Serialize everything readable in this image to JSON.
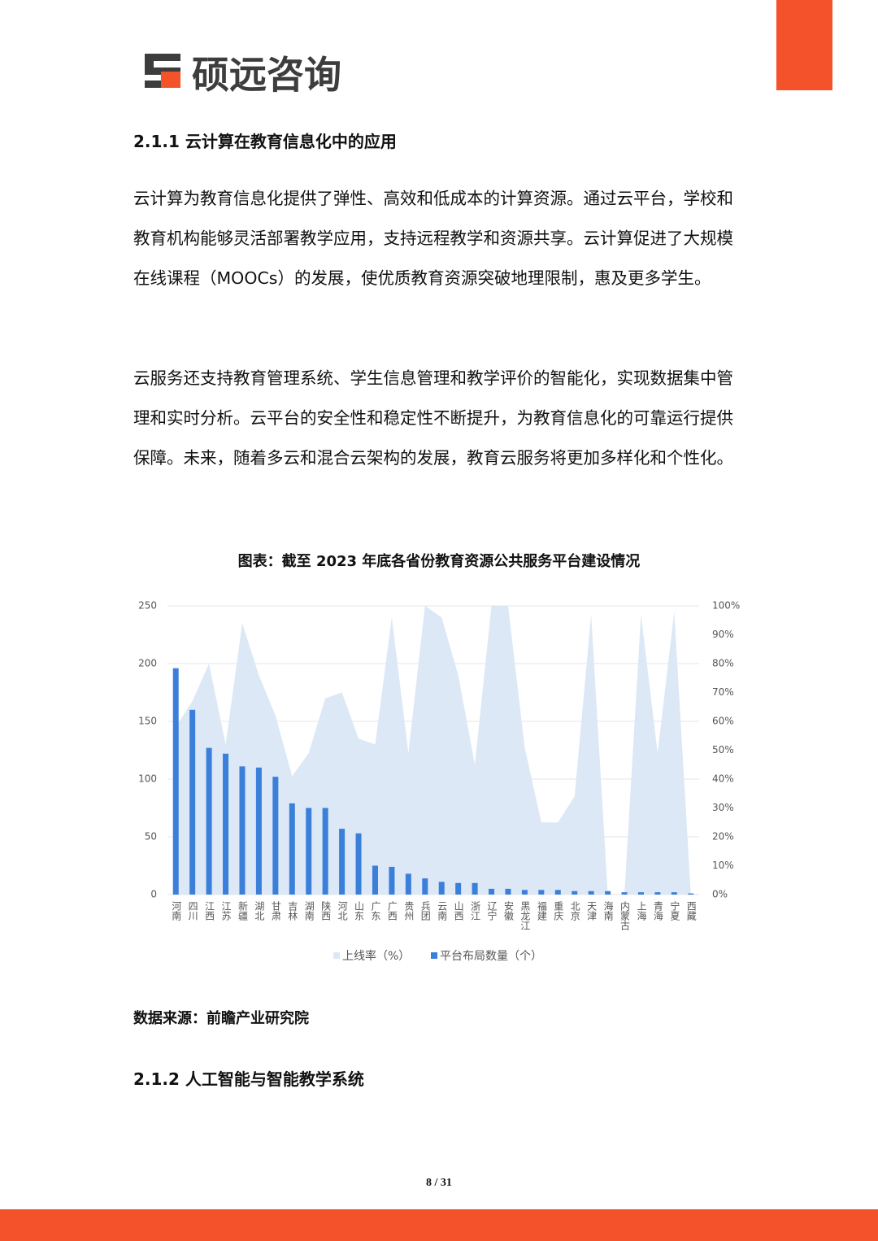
{
  "header": {
    "logo": "硕远咨询"
  },
  "sections": [
    {
      "heading": "2.1.1 云计算在教育信息化中的应用",
      "paragraphs": [
        "云计算为教育信息化提供了弹性、高效和低成本的计算资源。通过云平台，学校和教育机构能够灵活部署教学应用，支持远程教学和资源共享。云计算促进了大规模在线课程（MOOCs）的发展，使优质教育资源突破地理限制，惠及更多学生。",
        "云服务还支持教育管理系统、学生信息管理和教学评价的智能化，实现数据集中管理和实时分析。云平台的安全性和稳定性不断提升，为教育信息化的可靠运行提供保障。未来，随着多云和混合云架构的发展，教育云服务将更加多样化和个性化。"
      ]
    },
    {
      "heading": "2.1.2 人工智能与智能教学系统",
      "paragraphs": []
    }
  ],
  "chart_data": {
    "type": "bar",
    "title": "图表：截至 2023 年底各省份教育资源公共服务平台建设情况",
    "categories": [
      "河南",
      "四川",
      "江西",
      "江苏",
      "新疆",
      "湖北",
      "甘肃",
      "吉林",
      "湖南",
      "陕西",
      "河北",
      "山东",
      "广东",
      "广西",
      "贵州",
      "兵团",
      "云南",
      "山西",
      "浙江",
      "辽宁",
      "安徽",
      "黑龙江",
      "福建",
      "重庆",
      "北京",
      "天津",
      "海南",
      "内蒙古",
      "上海",
      "青海",
      "宁夏",
      "西藏"
    ],
    "series": [
      {
        "name": "上线率（%）",
        "color": "#dce8f6",
        "type": "area",
        "axis": "y2",
        "values": [
          58,
          67,
          80,
          52,
          94,
          76,
          62,
          41,
          49,
          68,
          70,
          54,
          52,
          96,
          49,
          100,
          96,
          76,
          45,
          100,
          100,
          51,
          25,
          25,
          34,
          97,
          0,
          0,
          97,
          49,
          98,
          0
        ]
      },
      {
        "name": "平台布局数量（个）",
        "color": "#3a7fd9",
        "values": [
          196,
          160,
          127,
          122,
          111,
          110,
          102,
          79,
          75,
          75,
          57,
          53,
          25,
          24,
          18,
          14,
          11,
          10,
          10,
          5,
          5,
          4,
          4,
          4,
          3,
          3,
          3,
          2,
          2,
          2,
          2,
          1
        ]
      }
    ],
    "ylim": [
      0,
      250
    ],
    "yticks": [
      0,
      50,
      100,
      150,
      200,
      250
    ],
    "y2lim": [
      0,
      100
    ],
    "y2ticks": [
      {
        "value": 0,
        "label": "0%"
      },
      {
        "value": 10,
        "label": "10%"
      },
      {
        "value": 20,
        "label": "20%"
      },
      {
        "value": 30,
        "label": "30%"
      },
      {
        "value": 40,
        "label": "40%"
      },
      {
        "value": 50,
        "label": "50%"
      },
      {
        "value": 60,
        "label": "60%"
      },
      {
        "value": 70,
        "label": "70%"
      },
      {
        "value": 80,
        "label": "80%"
      },
      {
        "value": 90,
        "label": "90%"
      },
      {
        "value": 100,
        "label": "100%"
      }
    ],
    "grid": true,
    "legend": "bottom"
  },
  "source": "数据来源：前瞻产业研究院",
  "footer": {
    "page": "8 / 31"
  }
}
